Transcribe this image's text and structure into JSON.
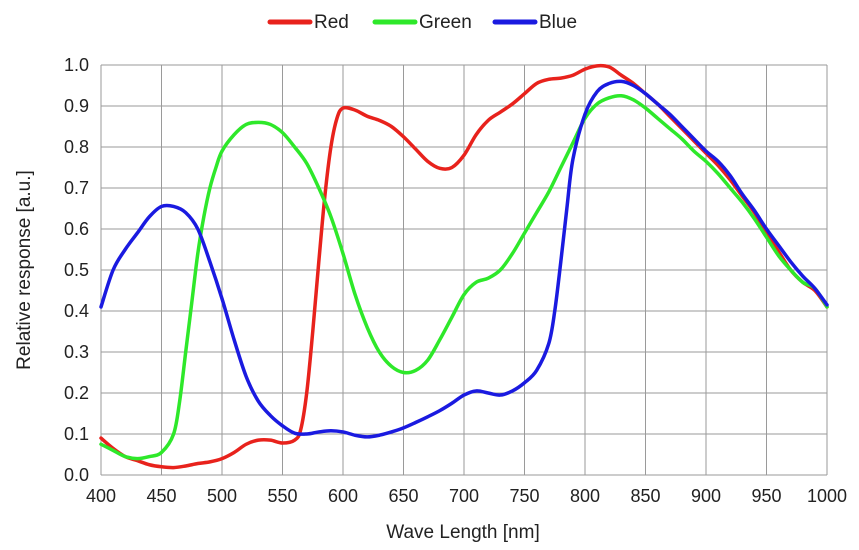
{
  "chart_data": {
    "type": "line",
    "title": "",
    "xlabel": "Wave Length [nm]",
    "ylabel": "Relative response [a.u.]",
    "xlim": [
      400,
      1000
    ],
    "ylim": [
      0.0,
      1.0
    ],
    "grid": true,
    "legend_position": "top",
    "x_ticks": [
      "400",
      "450",
      "500",
      "550",
      "600",
      "650",
      "700",
      "750",
      "800",
      "850",
      "900",
      "950",
      "1000"
    ],
    "y_ticks": [
      "0.0",
      "0.1",
      "0.2",
      "0.3",
      "0.4",
      "0.5",
      "0.6",
      "0.7",
      "0.8",
      "0.9",
      "1.0"
    ],
    "series": [
      {
        "name": "Red",
        "color": "#e8221c",
        "points": [
          [
            400,
            0.09
          ],
          [
            410,
            0.065
          ],
          [
            420,
            0.045
          ],
          [
            430,
            0.035
          ],
          [
            440,
            0.025
          ],
          [
            450,
            0.02
          ],
          [
            460,
            0.018
          ],
          [
            470,
            0.022
          ],
          [
            480,
            0.028
          ],
          [
            490,
            0.032
          ],
          [
            500,
            0.04
          ],
          [
            510,
            0.055
          ],
          [
            520,
            0.075
          ],
          [
            530,
            0.085
          ],
          [
            540,
            0.085
          ],
          [
            550,
            0.078
          ],
          [
            560,
            0.085
          ],
          [
            565,
            0.11
          ],
          [
            570,
            0.2
          ],
          [
            575,
            0.35
          ],
          [
            580,
            0.52
          ],
          [
            585,
            0.68
          ],
          [
            590,
            0.8
          ],
          [
            595,
            0.87
          ],
          [
            600,
            0.895
          ],
          [
            610,
            0.89
          ],
          [
            620,
            0.875
          ],
          [
            630,
            0.865
          ],
          [
            640,
            0.85
          ],
          [
            650,
            0.825
          ],
          [
            660,
            0.795
          ],
          [
            670,
            0.765
          ],
          [
            680,
            0.748
          ],
          [
            690,
            0.75
          ],
          [
            700,
            0.78
          ],
          [
            710,
            0.83
          ],
          [
            720,
            0.865
          ],
          [
            730,
            0.885
          ],
          [
            740,
            0.905
          ],
          [
            750,
            0.93
          ],
          [
            760,
            0.955
          ],
          [
            770,
            0.965
          ],
          [
            780,
            0.968
          ],
          [
            790,
            0.975
          ],
          [
            800,
            0.99
          ],
          [
            810,
            0.998
          ],
          [
            820,
            0.995
          ],
          [
            830,
            0.975
          ],
          [
            840,
            0.955
          ],
          [
            850,
            0.93
          ],
          [
            860,
            0.905
          ],
          [
            870,
            0.875
          ],
          [
            880,
            0.845
          ],
          [
            890,
            0.815
          ],
          [
            900,
            0.785
          ],
          [
            910,
            0.755
          ],
          [
            920,
            0.72
          ],
          [
            930,
            0.68
          ],
          [
            940,
            0.64
          ],
          [
            950,
            0.59
          ],
          [
            960,
            0.545
          ],
          [
            970,
            0.5
          ],
          [
            980,
            0.47
          ],
          [
            990,
            0.45
          ],
          [
            1000,
            0.41
          ]
        ]
      },
      {
        "name": "Green",
        "color": "#2ee82a",
        "points": [
          [
            400,
            0.075
          ],
          [
            410,
            0.06
          ],
          [
            420,
            0.045
          ],
          [
            430,
            0.04
          ],
          [
            440,
            0.045
          ],
          [
            450,
            0.055
          ],
          [
            460,
            0.1
          ],
          [
            465,
            0.18
          ],
          [
            470,
            0.3
          ],
          [
            475,
            0.42
          ],
          [
            480,
            0.54
          ],
          [
            485,
            0.63
          ],
          [
            490,
            0.7
          ],
          [
            495,
            0.75
          ],
          [
            500,
            0.79
          ],
          [
            510,
            0.83
          ],
          [
            520,
            0.855
          ],
          [
            530,
            0.86
          ],
          [
            540,
            0.855
          ],
          [
            550,
            0.835
          ],
          [
            560,
            0.8
          ],
          [
            570,
            0.76
          ],
          [
            580,
            0.7
          ],
          [
            590,
            0.63
          ],
          [
            600,
            0.54
          ],
          [
            610,
            0.44
          ],
          [
            620,
            0.36
          ],
          [
            630,
            0.3
          ],
          [
            640,
            0.265
          ],
          [
            650,
            0.25
          ],
          [
            660,
            0.255
          ],
          [
            670,
            0.28
          ],
          [
            680,
            0.33
          ],
          [
            690,
            0.385
          ],
          [
            700,
            0.44
          ],
          [
            710,
            0.47
          ],
          [
            720,
            0.48
          ],
          [
            730,
            0.5
          ],
          [
            740,
            0.54
          ],
          [
            750,
            0.59
          ],
          [
            760,
            0.64
          ],
          [
            770,
            0.69
          ],
          [
            780,
            0.75
          ],
          [
            790,
            0.81
          ],
          [
            800,
            0.87
          ],
          [
            810,
            0.905
          ],
          [
            820,
            0.92
          ],
          [
            830,
            0.925
          ],
          [
            840,
            0.915
          ],
          [
            850,
            0.895
          ],
          [
            860,
            0.87
          ],
          [
            870,
            0.845
          ],
          [
            880,
            0.82
          ],
          [
            890,
            0.79
          ],
          [
            900,
            0.765
          ],
          [
            910,
            0.735
          ],
          [
            920,
            0.7
          ],
          [
            930,
            0.665
          ],
          [
            940,
            0.625
          ],
          [
            950,
            0.58
          ],
          [
            960,
            0.535
          ],
          [
            970,
            0.5
          ],
          [
            980,
            0.47
          ],
          [
            990,
            0.455
          ],
          [
            1000,
            0.41
          ]
        ]
      },
      {
        "name": "Blue",
        "color": "#1a1ae0",
        "points": [
          [
            400,
            0.41
          ],
          [
            410,
            0.5
          ],
          [
            420,
            0.55
          ],
          [
            430,
            0.59
          ],
          [
            440,
            0.63
          ],
          [
            450,
            0.655
          ],
          [
            460,
            0.655
          ],
          [
            470,
            0.64
          ],
          [
            480,
            0.6
          ],
          [
            490,
            0.52
          ],
          [
            500,
            0.43
          ],
          [
            510,
            0.33
          ],
          [
            520,
            0.24
          ],
          [
            530,
            0.18
          ],
          [
            540,
            0.145
          ],
          [
            550,
            0.12
          ],
          [
            560,
            0.102
          ],
          [
            570,
            0.1
          ],
          [
            580,
            0.105
          ],
          [
            590,
            0.108
          ],
          [
            600,
            0.105
          ],
          [
            610,
            0.097
          ],
          [
            620,
            0.093
          ],
          [
            630,
            0.097
          ],
          [
            640,
            0.105
          ],
          [
            650,
            0.115
          ],
          [
            660,
            0.128
          ],
          [
            670,
            0.142
          ],
          [
            680,
            0.157
          ],
          [
            690,
            0.175
          ],
          [
            700,
            0.195
          ],
          [
            710,
            0.205
          ],
          [
            720,
            0.2
          ],
          [
            730,
            0.195
          ],
          [
            740,
            0.205
          ],
          [
            750,
            0.225
          ],
          [
            760,
            0.255
          ],
          [
            770,
            0.32
          ],
          [
            775,
            0.4
          ],
          [
            780,
            0.52
          ],
          [
            785,
            0.65
          ],
          [
            790,
            0.77
          ],
          [
            800,
            0.88
          ],
          [
            810,
            0.935
          ],
          [
            820,
            0.955
          ],
          [
            830,
            0.96
          ],
          [
            840,
            0.95
          ],
          [
            850,
            0.93
          ],
          [
            860,
            0.905
          ],
          [
            870,
            0.88
          ],
          [
            880,
            0.85
          ],
          [
            890,
            0.82
          ],
          [
            900,
            0.79
          ],
          [
            910,
            0.765
          ],
          [
            920,
            0.73
          ],
          [
            930,
            0.685
          ],
          [
            940,
            0.645
          ],
          [
            950,
            0.6
          ],
          [
            960,
            0.56
          ],
          [
            970,
            0.52
          ],
          [
            980,
            0.485
          ],
          [
            990,
            0.455
          ],
          [
            1000,
            0.415
          ]
        ]
      }
    ]
  }
}
